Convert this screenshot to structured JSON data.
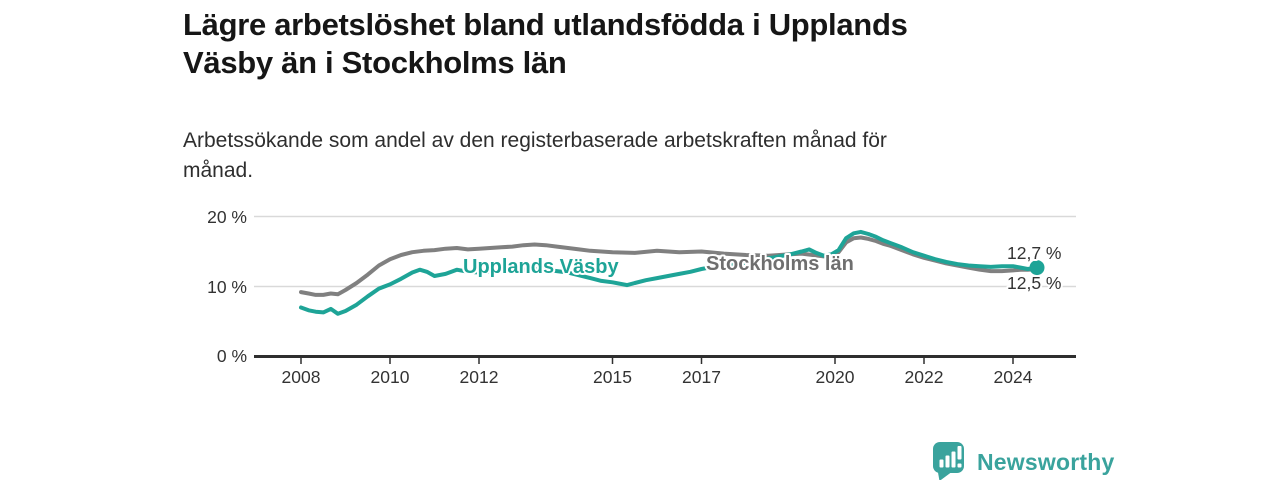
{
  "header": {
    "title_lines": [
      "Lägre arbetslöshet bland utlandsfödda i Upplands",
      "Väsby än i Stockholms län"
    ],
    "subtitle_lines": [
      "Arbetssökande som andel av den registerbaserade arbetskraften månad för",
      "månad."
    ]
  },
  "chart_data": {
    "type": "line",
    "title": "Lägre arbetslöshet bland utlandsfödda i Upplands Väsby än i Stockholms län",
    "subtitle": "Arbetssökande som andel av den registerbaserade arbetskraften månad för månad.",
    "legend": "inline-labels",
    "grid": "horizontal",
    "ylim": [
      0,
      21
    ],
    "xlim": [
      2007,
      2025.4
    ],
    "y_axis": {
      "ticks": [
        {
          "value": 20,
          "label": "20 %"
        },
        {
          "value": 10,
          "label": "10 %"
        },
        {
          "value": 0,
          "label": "0 %"
        }
      ]
    },
    "x_axis": {
      "ticks": [
        {
          "year": 2008,
          "label": "2008"
        },
        {
          "year": 2010,
          "label": "2010"
        },
        {
          "year": 2012,
          "label": "2012"
        },
        {
          "year": 2015,
          "label": "2015"
        },
        {
          "year": 2017,
          "label": "2017"
        },
        {
          "year": 2020,
          "label": "2020"
        },
        {
          "year": 2022,
          "label": "2022"
        },
        {
          "year": 2024,
          "label": "2024"
        }
      ]
    },
    "series": [
      {
        "name": "Upplands Väsby",
        "color": "#1ea497",
        "end_label": "12,7 %",
        "end_value": 12.7,
        "points": [
          [
            2008,
            7
          ],
          [
            2008.17,
            6.6
          ],
          [
            2008.33,
            6.4
          ],
          [
            2008.5,
            6.3
          ],
          [
            2008.67,
            6.8
          ],
          [
            2008.83,
            6.1
          ],
          [
            2009,
            6.5
          ],
          [
            2009.25,
            7.4
          ],
          [
            2009.5,
            8.6
          ],
          [
            2009.75,
            9.7
          ],
          [
            2010,
            10.3
          ],
          [
            2010.25,
            11.1
          ],
          [
            2010.5,
            12
          ],
          [
            2010.67,
            12.4
          ],
          [
            2010.83,
            12.1
          ],
          [
            2011,
            11.5
          ],
          [
            2011.25,
            11.8
          ],
          [
            2011.5,
            12.4
          ],
          [
            2011.75,
            12.1
          ],
          [
            2012,
            12
          ],
          [
            2012.25,
            12.1
          ],
          [
            2012.5,
            12.2
          ],
          [
            2012.75,
            12.3
          ],
          [
            2013,
            12.4
          ],
          [
            2013.25,
            12.5
          ],
          [
            2013.5,
            12.4
          ],
          [
            2013.75,
            12.2
          ],
          [
            2014,
            12
          ],
          [
            2014.25,
            11.6
          ],
          [
            2014.5,
            11.2
          ],
          [
            2014.75,
            10.8
          ],
          [
            2015,
            10.6
          ],
          [
            2015.33,
            10.2
          ],
          [
            2015.5,
            10.5
          ],
          [
            2015.75,
            10.9
          ],
          [
            2016,
            11.2
          ],
          [
            2016.25,
            11.5
          ],
          [
            2016.5,
            11.8
          ],
          [
            2016.75,
            12.1
          ],
          [
            2017,
            12.5
          ],
          [
            2017.25,
            12.8
          ],
          [
            2017.5,
            13
          ],
          [
            2017.75,
            13.2
          ],
          [
            2018,
            13.4
          ],
          [
            2018.25,
            13.7
          ],
          [
            2018.5,
            14
          ],
          [
            2018.75,
            14.3
          ],
          [
            2019,
            14.6
          ],
          [
            2019.25,
            15
          ],
          [
            2019.42,
            15.3
          ],
          [
            2019.58,
            14.8
          ],
          [
            2019.75,
            14.4
          ],
          [
            2019.92,
            14.6
          ],
          [
            2020.08,
            15.2
          ],
          [
            2020.25,
            16.9
          ],
          [
            2020.42,
            17.6
          ],
          [
            2020.58,
            17.8
          ],
          [
            2020.75,
            17.5
          ],
          [
            2020.92,
            17.1
          ],
          [
            2021.08,
            16.6
          ],
          [
            2021.25,
            16.2
          ],
          [
            2021.5,
            15.6
          ],
          [
            2021.75,
            14.9
          ],
          [
            2022,
            14.4
          ],
          [
            2022.25,
            13.9
          ],
          [
            2022.5,
            13.5
          ],
          [
            2022.75,
            13.2
          ],
          [
            2023,
            13
          ],
          [
            2023.25,
            12.9
          ],
          [
            2023.5,
            12.8
          ],
          [
            2023.75,
            12.9
          ],
          [
            2024,
            12.9
          ],
          [
            2024.17,
            12.7
          ],
          [
            2024.33,
            12.5
          ],
          [
            2024.54,
            12.7
          ]
        ]
      },
      {
        "name": "Stockholms län",
        "color": "#808080",
        "end_label": "12,5 %",
        "end_value": 12.5,
        "points": [
          [
            2008,
            9.2
          ],
          [
            2008.17,
            9
          ],
          [
            2008.33,
            8.8
          ],
          [
            2008.5,
            8.8
          ],
          [
            2008.67,
            9
          ],
          [
            2008.83,
            8.9
          ],
          [
            2009,
            9.5
          ],
          [
            2009.25,
            10.5
          ],
          [
            2009.5,
            11.7
          ],
          [
            2009.75,
            13
          ],
          [
            2010,
            13.9
          ],
          [
            2010.25,
            14.5
          ],
          [
            2010.5,
            14.9
          ],
          [
            2010.75,
            15.1
          ],
          [
            2011,
            15.2
          ],
          [
            2011.25,
            15.4
          ],
          [
            2011.5,
            15.5
          ],
          [
            2011.75,
            15.3
          ],
          [
            2012,
            15.4
          ],
          [
            2012.25,
            15.5
          ],
          [
            2012.5,
            15.6
          ],
          [
            2012.75,
            15.7
          ],
          [
            2013,
            15.9
          ],
          [
            2013.25,
            16
          ],
          [
            2013.5,
            15.9
          ],
          [
            2013.75,
            15.7
          ],
          [
            2014,
            15.5
          ],
          [
            2014.25,
            15.3
          ],
          [
            2014.5,
            15.1
          ],
          [
            2015,
            14.9
          ],
          [
            2015.5,
            14.8
          ],
          [
            2016,
            15.1
          ],
          [
            2016.5,
            14.9
          ],
          [
            2017,
            15
          ],
          [
            2017.5,
            14.7
          ],
          [
            2018,
            14.5
          ],
          [
            2018.5,
            14.4
          ],
          [
            2019,
            14.6
          ],
          [
            2019.25,
            14.7
          ],
          [
            2019.5,
            14.5
          ],
          [
            2019.75,
            14.3
          ],
          [
            2019.92,
            14.5
          ],
          [
            2020.08,
            14.9
          ],
          [
            2020.25,
            16.3
          ],
          [
            2020.42,
            16.9
          ],
          [
            2020.58,
            17
          ],
          [
            2020.75,
            16.8
          ],
          [
            2020.92,
            16.5
          ],
          [
            2021.08,
            16.1
          ],
          [
            2021.25,
            15.8
          ],
          [
            2021.5,
            15.2
          ],
          [
            2021.75,
            14.6
          ],
          [
            2022,
            14.1
          ],
          [
            2022.25,
            13.7
          ],
          [
            2022.5,
            13.3
          ],
          [
            2022.75,
            13
          ],
          [
            2023,
            12.7
          ],
          [
            2023.25,
            12.4
          ],
          [
            2023.5,
            12.2
          ],
          [
            2023.75,
            12.2
          ],
          [
            2024,
            12.3
          ],
          [
            2024.17,
            12.4
          ],
          [
            2024.33,
            12.4
          ],
          [
            2024.54,
            12.5
          ]
        ]
      }
    ]
  },
  "footer": {
    "brand": "Newsworthy",
    "brand_color": "#3aa39d"
  }
}
